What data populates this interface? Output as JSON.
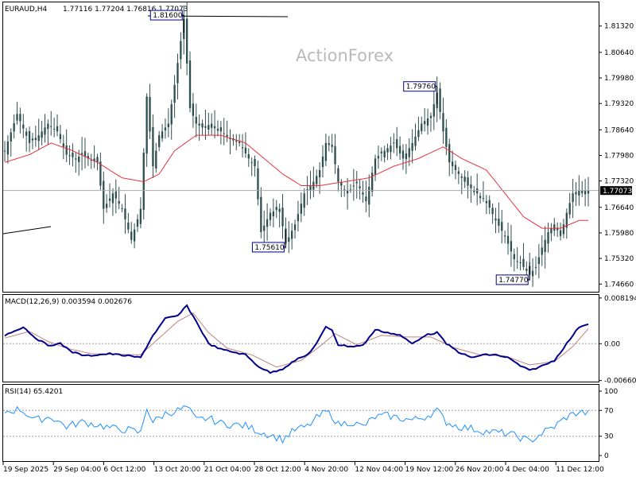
{
  "chart_header": {
    "symbol": "EURAUD,H4",
    "ohlc": "1.77116 1.77204 1.76816 1.77073"
  },
  "watermark": "ActionForex",
  "colors": {
    "candle": "#2f4f4f",
    "ma": "#e8313b",
    "macd_line": "#00008b",
    "macd_signal": "#c08080",
    "rsi": "#1e90ff",
    "grid_dotted": "#a0a0a0",
    "current_line": "#a9a9a9",
    "current_bg": "#000000"
  },
  "chart_data": [
    {
      "type": "candlestick",
      "name": "price",
      "x_tick_labels": [
        "19 Sep 2025",
        "29 Sep 04:00",
        "6 Oct 12:00",
        "13 Oct 20:00",
        "21 Oct 04:00",
        "28 Oct 12:00",
        "4 Nov 20:00",
        "12 Nov 04:00",
        "19 Nov 12:00",
        "26 Nov 20:00",
        "4 Dec 04:00",
        "11 Dec 12:00"
      ],
      "y_tick_labels": [
        "1.81320",
        "1.80640",
        "1.79980",
        "1.79320",
        "1.78640",
        "1.77980",
        "1.77320",
        "1.76640",
        "1.75980",
        "1.75320",
        "1.74660"
      ],
      "ylim": [
        1.7446,
        1.8193
      ],
      "current_price": "1.77073",
      "annotations": [
        {
          "label": "1.81600",
          "value": 1.816,
          "index": 58
        },
        {
          "label": "1.79760",
          "value": 1.7976,
          "index": 140
        },
        {
          "label": "1.75610",
          "value": 1.7561,
          "index": 91
        },
        {
          "label": "1.74770",
          "value": 1.7477,
          "index": 170
        }
      ],
      "anchors": [
        [
          0,
          1.781
        ],
        [
          4,
          1.7905
        ],
        [
          8,
          1.783
        ],
        [
          11,
          1.785
        ],
        [
          14,
          1.788
        ],
        [
          17,
          1.786
        ],
        [
          20,
          1.78
        ],
        [
          23,
          1.779
        ],
        [
          25,
          1.78
        ],
        [
          28,
          1.7785
        ],
        [
          30,
          1.778
        ],
        [
          32,
          1.766
        ],
        [
          35,
          1.77
        ],
        [
          38,
          1.766
        ],
        [
          41,
          1.758
        ],
        [
          44,
          1.766
        ],
        [
          46,
          1.795
        ],
        [
          48,
          1.777
        ],
        [
          50,
          1.785
        ],
        [
          53,
          1.788
        ],
        [
          55,
          1.798
        ],
        [
          58,
          1.815
        ],
        [
          60,
          1.792
        ],
        [
          62,
          1.788
        ],
        [
          64,
          1.787
        ],
        [
          67,
          1.788
        ],
        [
          70,
          1.786
        ],
        [
          73,
          1.784
        ],
        [
          76,
          1.783
        ],
        [
          79,
          1.779
        ],
        [
          81,
          1.777
        ],
        [
          83,
          1.76
        ],
        [
          86,
          1.765
        ],
        [
          89,
          1.766
        ],
        [
          91,
          1.757
        ],
        [
          94,
          1.762
        ],
        [
          97,
          1.77
        ],
        [
          100,
          1.773
        ],
        [
          102,
          1.776
        ],
        [
          104,
          1.783
        ],
        [
          106,
          1.782
        ],
        [
          108,
          1.773
        ],
        [
          111,
          1.77
        ],
        [
          114,
          1.773
        ],
        [
          117,
          1.768
        ],
        [
          120,
          1.779
        ],
        [
          123,
          1.781
        ],
        [
          126,
          1.783
        ],
        [
          129,
          1.779
        ],
        [
          132,
          1.783
        ],
        [
          135,
          1.788
        ],
        [
          138,
          1.79
        ],
        [
          140,
          1.796
        ],
        [
          142,
          1.786
        ],
        [
          144,
          1.778
        ],
        [
          147,
          1.775
        ],
        [
          150,
          1.772
        ],
        [
          153,
          1.77
        ],
        [
          156,
          1.768
        ],
        [
          159,
          1.763
        ],
        [
          162,
          1.759
        ],
        [
          165,
          1.753
        ],
        [
          167,
          1.752
        ],
        [
          170,
          1.749
        ],
        [
          172,
          1.751
        ],
        [
          174,
          1.756
        ],
        [
          176,
          1.76
        ],
        [
          178,
          1.762
        ],
        [
          180,
          1.759
        ],
        [
          182,
          1.765
        ],
        [
          184,
          1.77
        ],
        [
          186,
          1.7707
        ]
      ],
      "ma_anchors": [
        [
          0,
          1.778
        ],
        [
          8,
          1.78
        ],
        [
          15,
          1.783
        ],
        [
          22,
          1.781
        ],
        [
          30,
          1.778
        ],
        [
          38,
          1.774
        ],
        [
          45,
          1.773
        ],
        [
          50,
          1.775
        ],
        [
          55,
          1.781
        ],
        [
          62,
          1.785
        ],
        [
          70,
          1.785
        ],
        [
          78,
          1.783
        ],
        [
          84,
          1.779
        ],
        [
          90,
          1.775
        ],
        [
          96,
          1.772
        ],
        [
          102,
          1.772
        ],
        [
          110,
          1.773
        ],
        [
          118,
          1.774
        ],
        [
          126,
          1.777
        ],
        [
          134,
          1.779
        ],
        [
          142,
          1.782
        ],
        [
          148,
          1.779
        ],
        [
          156,
          1.776
        ],
        [
          162,
          1.77
        ],
        [
          168,
          1.764
        ],
        [
          174,
          1.761
        ],
        [
          180,
          1.761
        ],
        [
          186,
          1.763
        ]
      ]
    },
    {
      "type": "line",
      "name": "macd",
      "title": "MACD(12,26,9) 0.003594 0.002676",
      "y_tick_labels": [
        "0.008194",
        "0.00",
        "-0.006604"
      ],
      "ylim": [
        -0.0068,
        0.0086
      ],
      "line_anchors": [
        [
          0,
          0.0015
        ],
        [
          6,
          0.003
        ],
        [
          10,
          0.001
        ],
        [
          14,
          -0.0003
        ],
        [
          18,
          0.0
        ],
        [
          22,
          -0.0015
        ],
        [
          26,
          -0.0022
        ],
        [
          30,
          -0.002
        ],
        [
          34,
          -0.0018
        ],
        [
          40,
          -0.0022
        ],
        [
          44,
          -0.0025
        ],
        [
          48,
          0.0015
        ],
        [
          52,
          0.0045
        ],
        [
          56,
          0.005
        ],
        [
          59,
          0.0068
        ],
        [
          62,
          0.004
        ],
        [
          66,
          0.0
        ],
        [
          70,
          -0.001
        ],
        [
          74,
          -0.0015
        ],
        [
          78,
          -0.002
        ],
        [
          82,
          -0.004
        ],
        [
          86,
          -0.0052
        ],
        [
          90,
          -0.0045
        ],
        [
          94,
          -0.003
        ],
        [
          98,
          -0.002
        ],
        [
          101,
          0.0
        ],
        [
          104,
          0.003
        ],
        [
          106,
          0.0025
        ],
        [
          108,
          -0.0002
        ],
        [
          112,
          -0.0005
        ],
        [
          116,
          -0.0003
        ],
        [
          120,
          0.0025
        ],
        [
          124,
          0.002
        ],
        [
          128,
          0.0015
        ],
        [
          132,
          0.0
        ],
        [
          136,
          0.0015
        ],
        [
          140,
          0.002
        ],
        [
          143,
          0.0
        ],
        [
          147,
          -0.0015
        ],
        [
          151,
          -0.0025
        ],
        [
          155,
          -0.002
        ],
        [
          159,
          -0.002
        ],
        [
          163,
          -0.0025
        ],
        [
          167,
          -0.004
        ],
        [
          170,
          -0.0048
        ],
        [
          174,
          -0.004
        ],
        [
          178,
          -0.003
        ],
        [
          182,
          0.0
        ],
        [
          186,
          0.003
        ],
        [
          189,
          0.0036
        ]
      ],
      "signal_anchors": [
        [
          0,
          0.001
        ],
        [
          8,
          0.0022
        ],
        [
          14,
          0.0004
        ],
        [
          20,
          -0.0008
        ],
        [
          28,
          -0.0018
        ],
        [
          36,
          -0.0019
        ],
        [
          44,
          -0.002
        ],
        [
          50,
          0.001
        ],
        [
          56,
          0.004
        ],
        [
          61,
          0.0055
        ],
        [
          66,
          0.002
        ],
        [
          72,
          -0.0008
        ],
        [
          80,
          -0.002
        ],
        [
          88,
          -0.0042
        ],
        [
          96,
          -0.003
        ],
        [
          102,
          -0.0005
        ],
        [
          107,
          0.0018
        ],
        [
          114,
          -0.0002
        ],
        [
          122,
          0.0015
        ],
        [
          130,
          0.0012
        ],
        [
          138,
          0.0012
        ],
        [
          146,
          -0.0008
        ],
        [
          154,
          -0.002
        ],
        [
          162,
          -0.0022
        ],
        [
          170,
          -0.0038
        ],
        [
          178,
          -0.0032
        ],
        [
          184,
          -0.0005
        ],
        [
          189,
          0.0027
        ]
      ]
    },
    {
      "type": "line",
      "name": "rsi",
      "title": "RSI(14) 65.4201",
      "y_tick_labels": [
        "100",
        "70",
        "30",
        "0"
      ],
      "levels": [
        70,
        30
      ],
      "ylim": [
        0,
        100
      ],
      "anchors": [
        [
          0,
          68
        ],
        [
          5,
          72
        ],
        [
          10,
          55
        ],
        [
          15,
          60
        ],
        [
          20,
          45
        ],
        [
          25,
          52
        ],
        [
          30,
          48
        ],
        [
          35,
          42
        ],
        [
          40,
          40
        ],
        [
          44,
          35
        ],
        [
          46,
          75
        ],
        [
          48,
          52
        ],
        [
          52,
          65
        ],
        [
          56,
          70
        ],
        [
          59,
          75
        ],
        [
          62,
          55
        ],
        [
          66,
          58
        ],
        [
          70,
          50
        ],
        [
          74,
          48
        ],
        [
          78,
          46
        ],
        [
          82,
          38
        ],
        [
          86,
          32
        ],
        [
          90,
          25
        ],
        [
          94,
          40
        ],
        [
          98,
          45
        ],
        [
          101,
          58
        ],
        [
          104,
          68
        ],
        [
          106,
          62
        ],
        [
          108,
          48
        ],
        [
          112,
          52
        ],
        [
          116,
          45
        ],
        [
          120,
          60
        ],
        [
          124,
          62
        ],
        [
          128,
          58
        ],
        [
          132,
          55
        ],
        [
          136,
          60
        ],
        [
          140,
          70
        ],
        [
          143,
          52
        ],
        [
          147,
          45
        ],
        [
          151,
          42
        ],
        [
          155,
          38
        ],
        [
          159,
          36
        ],
        [
          163,
          34
        ],
        [
          167,
          28
        ],
        [
          170,
          22
        ],
        [
          174,
          35
        ],
        [
          178,
          45
        ],
        [
          182,
          60
        ],
        [
          186,
          68
        ],
        [
          189,
          65
        ]
      ]
    }
  ]
}
